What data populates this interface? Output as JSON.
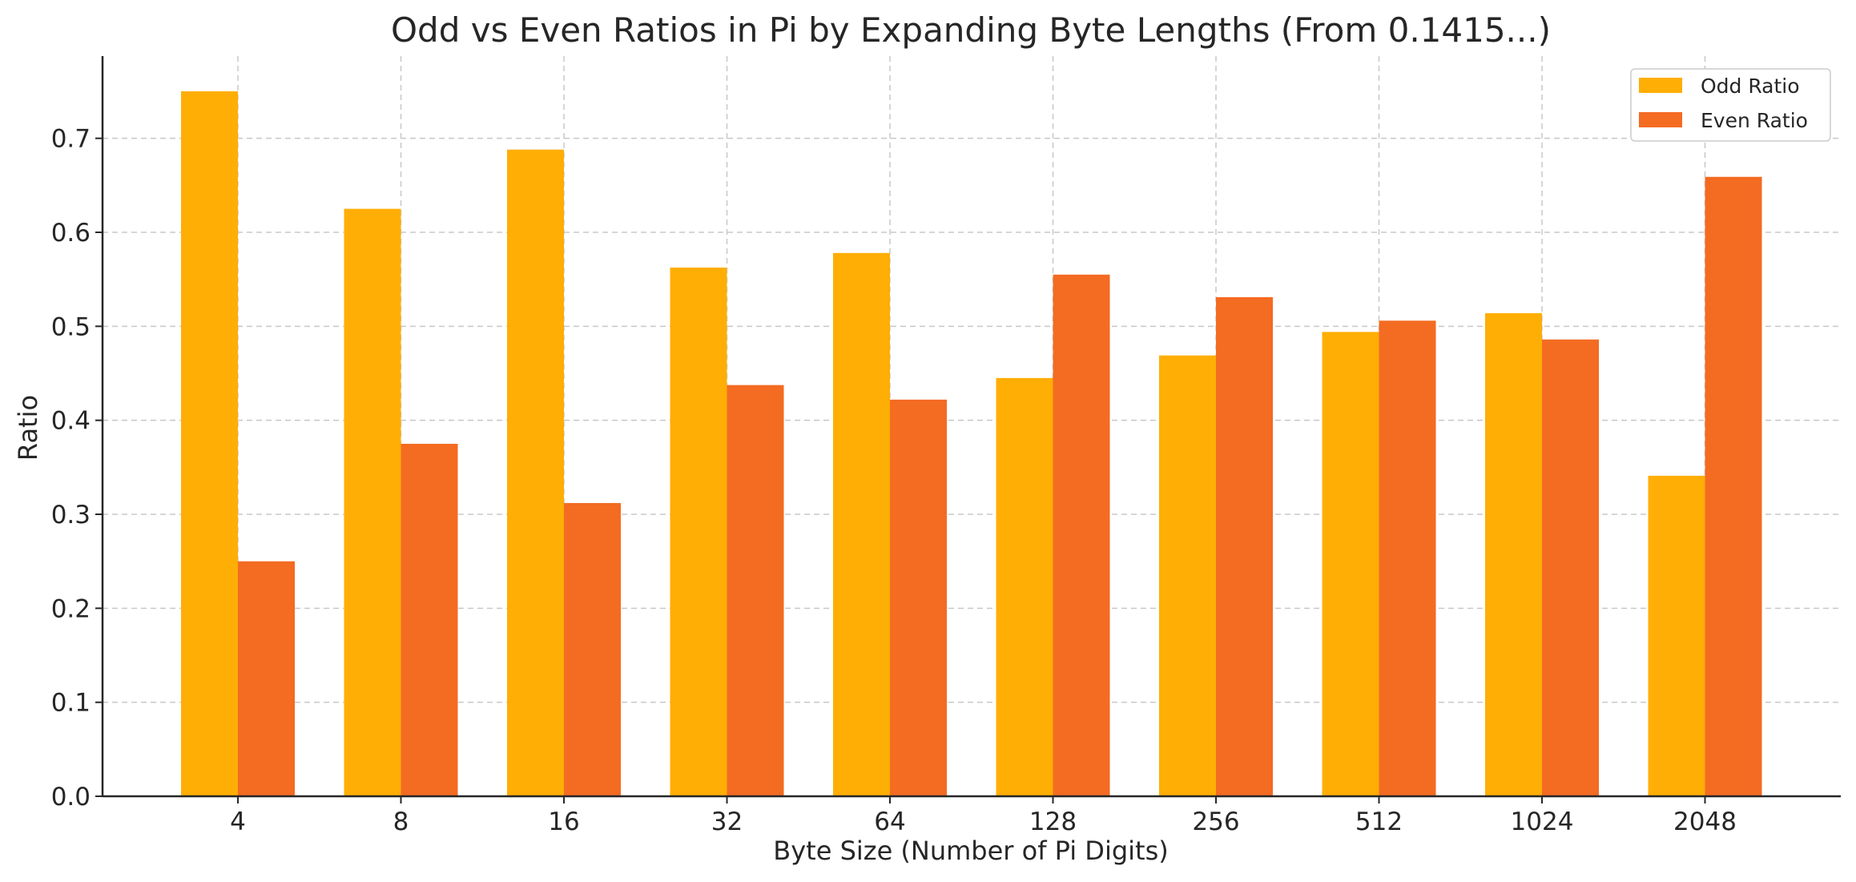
{
  "chart_data": {
    "type": "bar",
    "title": "Odd vs Even Ratios in Pi by Expanding Byte Lengths (From 0.1415...)",
    "xlabel": "Byte Size (Number of Pi Digits)",
    "ylabel": "Ratio",
    "categories": [
      "4",
      "8",
      "16",
      "32",
      "64",
      "128",
      "256",
      "512",
      "1024",
      "2048"
    ],
    "series": [
      {
        "name": "Odd Ratio",
        "color": "#FFAE05",
        "values": [
          0.75,
          0.625,
          0.688,
          0.5625,
          0.578,
          0.445,
          0.469,
          0.494,
          0.514,
          0.341
        ]
      },
      {
        "name": "Even Ratio",
        "color": "#F46B22",
        "values": [
          0.25,
          0.375,
          0.312,
          0.4375,
          0.422,
          0.555,
          0.531,
          0.506,
          0.486,
          0.659
        ]
      }
    ],
    "yticks": [
      "0.0",
      "0.1",
      "0.2",
      "0.3",
      "0.4",
      "0.5",
      "0.6",
      "0.7"
    ],
    "ylim": [
      0,
      0.7875
    ],
    "grid": true,
    "legend_position": "top-right"
  }
}
